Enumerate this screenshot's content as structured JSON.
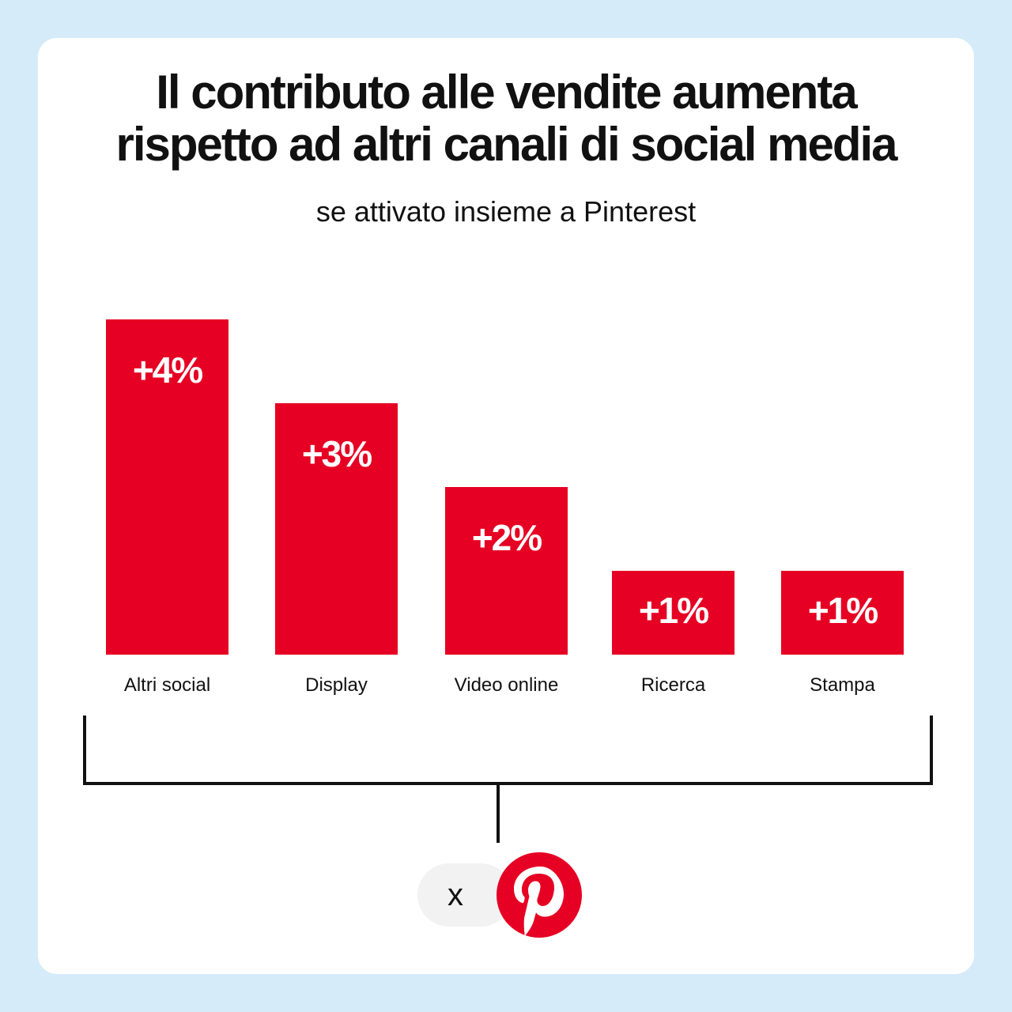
{
  "title_line1": "Il contributo alle vendite aumenta",
  "title_line2": "rispetto ad altri canali di social media",
  "subtitle": "se attivato insieme a Pinterest",
  "badge": {
    "multiplier": "x",
    "logo_icon": "pinterest-logo-icon",
    "logo_color": "#e60023"
  },
  "colors": {
    "bar": "#e60023",
    "bracket": "#111111",
    "background": "#d6ebf9"
  },
  "chart_data": {
    "type": "bar",
    "categories": [
      "Altri social",
      "Display",
      "Video online",
      "Ricerca",
      "Stampa"
    ],
    "values": [
      4,
      3,
      2,
      1,
      1
    ],
    "value_labels": [
      "+4%",
      "+3%",
      "+2%",
      "+1%",
      "+1%"
    ],
    "title": "Il contributo alle vendite aumenta rispetto ad altri canali di social media",
    "subtitle": "se attivato insieme a Pinterest",
    "xlabel": "",
    "ylabel": "",
    "ylim": [
      0,
      4
    ],
    "grid": false,
    "legend": "none"
  }
}
